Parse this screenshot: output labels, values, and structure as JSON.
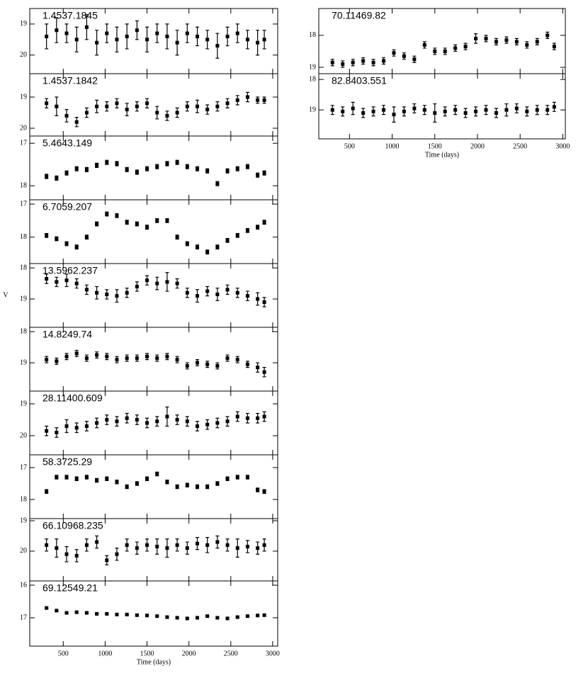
{
  "chart_data": [
    {
      "type": "scatter",
      "title": "1.4537.1845",
      "color": "#000000",
      "x": [
        300,
        420,
        540,
        660,
        780,
        900,
        1020,
        1140,
        1260,
        1380,
        1500,
        1620,
        1740,
        1860,
        1980,
        2100,
        2220,
        2340,
        2460,
        2580,
        2700,
        2820,
        2900
      ],
      "values": [
        19.4,
        19.2,
        19.3,
        19.5,
        19.1,
        19.6,
        19.3,
        19.5,
        19.4,
        19.2,
        19.5,
        19.3,
        19.4,
        19.6,
        19.3,
        19.4,
        19.5,
        19.7,
        19.4,
        19.3,
        19.5,
        19.6,
        19.5
      ],
      "errors": [
        0.4,
        0.4,
        0.3,
        0.4,
        0.4,
        0.4,
        0.3,
        0.4,
        0.4,
        0.3,
        0.4,
        0.3,
        0.4,
        0.4,
        0.3,
        0.3,
        0.3,
        0.4,
        0.3,
        0.3,
        0.3,
        0.4,
        0.3
      ],
      "xlim": [
        100,
        3060
      ],
      "ylim": [
        20.6,
        18.5
      ],
      "yticks": [
        19,
        20
      ],
      "xticks": [
        500,
        1000,
        1500,
        2000,
        2500,
        3000
      ]
    },
    {
      "type": "scatter",
      "title": "1.4537.1842",
      "color": "#000000",
      "x": [
        300,
        420,
        540,
        660,
        780,
        900,
        1020,
        1140,
        1260,
        1380,
        1500,
        1620,
        1740,
        1860,
        1980,
        2100,
        2220,
        2340,
        2460,
        2580,
        2700,
        2820,
        2900
      ],
      "values": [
        19.2,
        19.3,
        19.6,
        19.8,
        19.5,
        19.3,
        19.3,
        19.2,
        19.4,
        19.3,
        19.2,
        19.5,
        19.6,
        19.5,
        19.3,
        19.3,
        19.4,
        19.3,
        19.2,
        19.1,
        19.0,
        19.1,
        19.1
      ],
      "errors": [
        0.15,
        0.3,
        0.2,
        0.15,
        0.15,
        0.2,
        0.15,
        0.15,
        0.2,
        0.15,
        0.15,
        0.2,
        0.15,
        0.15,
        0.15,
        0.2,
        0.15,
        0.15,
        0.15,
        0.15,
        0.15,
        0.1,
        0.1
      ],
      "xlim": [
        100,
        3060
      ],
      "ylim": [
        20.25,
        18.25
      ],
      "yticks": [
        19,
        20
      ],
      "xticks": [
        500,
        1000,
        1500,
        2000,
        2500,
        3000
      ]
    },
    {
      "type": "scatter",
      "title": "5.4643.149",
      "color": "#000000",
      "x": [
        300,
        420,
        540,
        660,
        780,
        900,
        1020,
        1140,
        1260,
        1380,
        1500,
        1620,
        1740,
        1860,
        1980,
        2100,
        2220,
        2340,
        2460,
        2580,
        2700,
        2820,
        2900
      ],
      "values": [
        17.78,
        17.82,
        17.7,
        17.6,
        17.62,
        17.52,
        17.45,
        17.48,
        17.62,
        17.68,
        17.6,
        17.55,
        17.48,
        17.45,
        17.55,
        17.6,
        17.65,
        17.95,
        17.65,
        17.6,
        17.55,
        17.75,
        17.7
      ],
      "errors": [
        0.05,
        0.05,
        0.05,
        0.05,
        0.05,
        0.05,
        0.05,
        0.05,
        0.05,
        0.05,
        0.05,
        0.05,
        0.05,
        0.05,
        0.05,
        0.05,
        0.05,
        0.05,
        0.05,
        0.05,
        0.05,
        0.05,
        0.05
      ],
      "xlim": [
        100,
        3060
      ],
      "ylim": [
        18.33,
        16.83
      ],
      "yticks": [
        17,
        18
      ],
      "xticks": [
        500,
        1000,
        1500,
        2000,
        2500,
        3000
      ]
    },
    {
      "type": "scatter",
      "title": "6.7059.207",
      "color": "#000000",
      "x": [
        300,
        420,
        540,
        660,
        780,
        900,
        1020,
        1140,
        1260,
        1380,
        1500,
        1620,
        1740,
        1860,
        1980,
        2100,
        2220,
        2340,
        2460,
        2580,
        2700,
        2820,
        2900
      ],
      "values": [
        17.95,
        18.05,
        18.2,
        18.3,
        18.0,
        17.6,
        17.3,
        17.35,
        17.55,
        17.6,
        17.7,
        17.5,
        17.5,
        18.0,
        18.2,
        18.3,
        18.45,
        18.3,
        18.1,
        17.95,
        17.8,
        17.7,
        17.55
      ],
      "errors": [
        0.06,
        0.06,
        0.06,
        0.06,
        0.06,
        0.06,
        0.06,
        0.06,
        0.06,
        0.06,
        0.06,
        0.06,
        0.06,
        0.06,
        0.06,
        0.06,
        0.06,
        0.06,
        0.06,
        0.06,
        0.06,
        0.06,
        0.06
      ],
      "xlim": [
        100,
        3060
      ],
      "ylim": [
        18.8,
        16.87
      ],
      "yticks": [
        17,
        18
      ],
      "xticks": [
        500,
        1000,
        1500,
        2000,
        2500,
        3000
      ]
    },
    {
      "type": "scatter",
      "title": "13.5962.237",
      "color": "#000000",
      "ylabel": "V",
      "x": [
        300,
        420,
        540,
        660,
        780,
        900,
        1020,
        1140,
        1260,
        1380,
        1500,
        1620,
        1740,
        1860,
        1980,
        2100,
        2220,
        2340,
        2460,
        2580,
        2700,
        2820,
        2900
      ],
      "values": [
        18.35,
        18.45,
        18.4,
        18.5,
        18.7,
        18.8,
        18.85,
        18.9,
        18.8,
        18.6,
        18.4,
        18.5,
        18.45,
        18.5,
        18.8,
        18.9,
        18.75,
        18.85,
        18.7,
        18.8,
        18.9,
        19.0,
        19.1
      ],
      "errors": [
        0.15,
        0.15,
        0.2,
        0.15,
        0.15,
        0.2,
        0.15,
        0.2,
        0.15,
        0.15,
        0.15,
        0.2,
        0.3,
        0.15,
        0.15,
        0.2,
        0.15,
        0.2,
        0.15,
        0.15,
        0.15,
        0.2,
        0.15
      ],
      "xlim": [
        100,
        3060
      ],
      "ylim": [
        19.91,
        17.86
      ],
      "yticks": [
        18,
        19
      ],
      "xticks": [
        500,
        1000,
        1500,
        2000,
        2500,
        3000
      ]
    },
    {
      "type": "scatter",
      "title": "14.8249.74",
      "color": "#000000",
      "x": [
        300,
        420,
        540,
        660,
        780,
        900,
        1020,
        1140,
        1260,
        1380,
        1500,
        1620,
        1740,
        1860,
        1980,
        2100,
        2220,
        2340,
        2460,
        2580,
        2700,
        2820,
        2900
      ],
      "values": [
        18.9,
        18.95,
        18.8,
        18.7,
        18.85,
        18.75,
        18.8,
        18.9,
        18.85,
        18.85,
        18.8,
        18.85,
        18.8,
        18.9,
        19.1,
        19.0,
        19.05,
        19.1,
        18.85,
        18.9,
        19.05,
        19.15,
        19.3
      ],
      "errors": [
        0.1,
        0.1,
        0.1,
        0.1,
        0.1,
        0.1,
        0.1,
        0.1,
        0.1,
        0.1,
        0.1,
        0.1,
        0.1,
        0.1,
        0.1,
        0.1,
        0.1,
        0.1,
        0.1,
        0.1,
        0.1,
        0.15,
        0.15
      ],
      "xlim": [
        100,
        3060
      ],
      "ylim": [
        19.91,
        17.86
      ],
      "yticks": [
        18,
        19
      ],
      "xticks": [
        500,
        1000,
        1500,
        2000,
        2500,
        3000
      ]
    },
    {
      "type": "scatter",
      "title": "28.11400.609",
      "color": "#000000",
      "x": [
        300,
        420,
        540,
        660,
        780,
        900,
        1020,
        1140,
        1260,
        1380,
        1500,
        1620,
        1740,
        1860,
        1980,
        2100,
        2220,
        2340,
        2460,
        2580,
        2700,
        2820,
        2900
      ],
      "values": [
        19.85,
        19.9,
        19.7,
        19.75,
        19.7,
        19.6,
        19.5,
        19.55,
        19.45,
        19.5,
        19.6,
        19.55,
        19.4,
        19.5,
        19.55,
        19.7,
        19.65,
        19.6,
        19.55,
        19.4,
        19.45,
        19.45,
        19.4
      ],
      "errors": [
        0.15,
        0.15,
        0.2,
        0.15,
        0.15,
        0.15,
        0.15,
        0.15,
        0.15,
        0.15,
        0.15,
        0.15,
        0.3,
        0.15,
        0.15,
        0.15,
        0.15,
        0.15,
        0.15,
        0.15,
        0.15,
        0.15,
        0.15
      ],
      "xlim": [
        100,
        3060
      ],
      "ylim": [
        20.6,
        18.6
      ],
      "yticks": [
        19,
        20
      ],
      "xticks": [
        500,
        1000,
        1500,
        2000,
        2500,
        3000
      ]
    },
    {
      "type": "scatter",
      "title": "58.3725.29",
      "color": "#000000",
      "x": [
        300,
        420,
        540,
        660,
        780,
        900,
        1020,
        1140,
        1260,
        1380,
        1500,
        1620,
        1740,
        1860,
        1980,
        2100,
        2220,
        2340,
        2460,
        2580,
        2700,
        2820,
        2900
      ],
      "values": [
        17.75,
        17.3,
        17.3,
        17.35,
        17.3,
        17.4,
        17.35,
        17.45,
        17.6,
        17.5,
        17.35,
        17.2,
        17.45,
        17.6,
        17.55,
        17.6,
        17.6,
        17.5,
        17.35,
        17.3,
        17.3,
        17.7,
        17.75
      ],
      "errors": [
        0.06,
        0.06,
        0.06,
        0.06,
        0.06,
        0.06,
        0.06,
        0.06,
        0.06,
        0.06,
        0.06,
        0.06,
        0.06,
        0.06,
        0.06,
        0.06,
        0.06,
        0.06,
        0.06,
        0.06,
        0.06,
        0.06,
        0.06
      ],
      "xlim": [
        100,
        3060
      ],
      "ylim": [
        18.6,
        16.6
      ],
      "yticks": [
        17,
        18
      ],
      "xticks": [
        500,
        1000,
        1500,
        2000,
        2500,
        3000
      ]
    },
    {
      "type": "scatter",
      "title": "66.10968.235",
      "color": "#000000",
      "x": [
        300,
        420,
        540,
        660,
        780,
        900,
        1020,
        1140,
        1260,
        1380,
        1500,
        1620,
        1740,
        1860,
        1980,
        2100,
        2220,
        2340,
        2460,
        2580,
        2700,
        2820,
        2900
      ],
      "values": [
        19.8,
        19.9,
        20.1,
        20.15,
        19.8,
        19.7,
        20.3,
        20.1,
        19.8,
        19.9,
        19.8,
        19.85,
        19.9,
        19.8,
        19.9,
        19.75,
        19.8,
        19.7,
        19.8,
        19.9,
        19.85,
        19.9,
        19.8
      ],
      "errors": [
        0.2,
        0.3,
        0.25,
        0.2,
        0.2,
        0.2,
        0.15,
        0.2,
        0.2,
        0.2,
        0.2,
        0.25,
        0.3,
        0.2,
        0.2,
        0.2,
        0.25,
        0.2,
        0.2,
        0.3,
        0.2,
        0.2,
        0.2
      ],
      "xlim": [
        100,
        3060
      ],
      "ylim": [
        20.98,
        18.93
      ],
      "yticks": [
        19,
        20
      ],
      "xticks": [
        500,
        1000,
        1500,
        2000,
        2500,
        3000
      ]
    },
    {
      "type": "scatter",
      "title": "69.12549.21",
      "color": "#000000",
      "xlabel": "Time (days)",
      "x": [
        300,
        420,
        540,
        660,
        780,
        900,
        1020,
        1140,
        1260,
        1380,
        1500,
        1620,
        1740,
        1860,
        1980,
        2100,
        2220,
        2340,
        2460,
        2580,
        2700,
        2820,
        2900
      ],
      "values": [
        16.7,
        16.78,
        16.85,
        16.83,
        16.85,
        16.88,
        16.88,
        16.9,
        16.9,
        16.92,
        16.93,
        16.95,
        16.98,
        17.0,
        17.02,
        17.0,
        16.95,
        17.0,
        17.02,
        16.98,
        16.95,
        16.93,
        16.92
      ],
      "errors": [
        0.02,
        0.02,
        0.02,
        0.02,
        0.02,
        0.02,
        0.02,
        0.02,
        0.02,
        0.02,
        0.02,
        0.02,
        0.02,
        0.02,
        0.02,
        0.02,
        0.02,
        0.02,
        0.02,
        0.02,
        0.02,
        0.02,
        0.02
      ],
      "xlim": [
        100,
        3060
      ],
      "ylim": [
        17.87,
        15.87
      ],
      "yticks": [
        16,
        17
      ],
      "xticks": [
        500,
        1000,
        1500,
        2000,
        2500,
        3000
      ]
    },
    {
      "type": "scatter",
      "title": "70.11469.82",
      "color": "#000000",
      "x": [
        300,
        420,
        540,
        660,
        780,
        900,
        1020,
        1140,
        1260,
        1380,
        1500,
        1620,
        1740,
        1860,
        1980,
        2100,
        2220,
        2340,
        2460,
        2580,
        2700,
        2820,
        2900
      ],
      "values": [
        18.85,
        18.9,
        18.85,
        18.8,
        18.85,
        18.8,
        18.55,
        18.65,
        18.75,
        18.3,
        18.5,
        18.5,
        18.4,
        18.35,
        18.1,
        18.1,
        18.2,
        18.15,
        18.2,
        18.3,
        18.2,
        18.0,
        18.35
      ],
      "errors": [
        0.1,
        0.1,
        0.1,
        0.1,
        0.1,
        0.1,
        0.1,
        0.1,
        0.1,
        0.1,
        0.1,
        0.1,
        0.1,
        0.1,
        0.15,
        0.1,
        0.1,
        0.1,
        0.1,
        0.1,
        0.1,
        0.1,
        0.1
      ],
      "xlim": [
        140,
        3030
      ],
      "ylim": [
        19.2,
        17.16
      ],
      "yticks": [
        18,
        19
      ],
      "xticks": [
        500,
        1000,
        1500,
        2000,
        2500,
        3000
      ]
    },
    {
      "type": "scatter",
      "title": "82.8403.551",
      "color": "#000000",
      "xlabel": "Time (days)",
      "x": [
        300,
        420,
        540,
        660,
        780,
        900,
        1020,
        1140,
        1260,
        1380,
        1500,
        1620,
        1740,
        1860,
        1980,
        2100,
        2220,
        2340,
        2460,
        2580,
        2700,
        2820,
        2900
      ],
      "values": [
        19.0,
        19.05,
        18.95,
        19.1,
        19.05,
        19.0,
        19.15,
        19.05,
        18.95,
        19.0,
        19.1,
        19.05,
        19.0,
        19.1,
        19.05,
        19.0,
        19.1,
        19.0,
        18.95,
        19.05,
        19.0,
        19.0,
        18.9
      ],
      "errors": [
        0.15,
        0.15,
        0.2,
        0.15,
        0.15,
        0.15,
        0.25,
        0.15,
        0.15,
        0.15,
        0.3,
        0.15,
        0.15,
        0.15,
        0.15,
        0.15,
        0.15,
        0.2,
        0.15,
        0.15,
        0.15,
        0.15,
        0.15
      ],
      "xlim": [
        140,
        3030
      ],
      "ylim": [
        19.95,
        17.81
      ],
      "yticks": [
        18,
        19
      ],
      "xticks": [
        500,
        1000,
        1500,
        2000,
        2500,
        3000
      ]
    }
  ]
}
